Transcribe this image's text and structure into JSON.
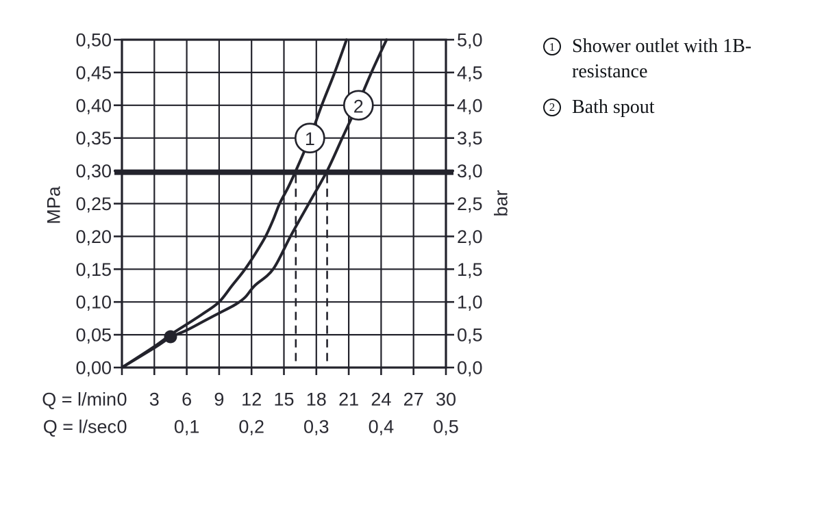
{
  "colors": {
    "ink": "#23232c",
    "text": "#2a2a32",
    "background": "#ffffff",
    "marker_fill": "#ffffff"
  },
  "chart_data": {
    "type": "line",
    "title": "",
    "x": {
      "min": 0,
      "max": 30,
      "grid_step": 3
    },
    "y": {
      "min": 0,
      "max": 0.5,
      "grid_step": 0.05
    },
    "y_left_axis": {
      "unit": "MPa",
      "labels": [
        "0,00",
        "0,05",
        "0,10",
        "0,15",
        "0,20",
        "0,25",
        "0,30",
        "0,35",
        "0,40",
        "0,45",
        "0,50"
      ]
    },
    "y_right_axis": {
      "unit": "bar",
      "labels": [
        "0,0",
        "0,5",
        "1,0",
        "1,5",
        "2,0",
        "2,5",
        "3,0",
        "3,5",
        "4,0",
        "4,5",
        "5,0"
      ]
    },
    "x_rows": [
      {
        "label": "Q = l/min",
        "step_lmin": 3,
        "ticks": [
          "0",
          "3",
          "6",
          "9",
          "12",
          "15",
          "18",
          "21",
          "24",
          "27",
          "30"
        ]
      },
      {
        "label": "Q = l/sec",
        "step_lmin": 6,
        "ticks": [
          "0",
          "0,1",
          "0,2",
          "0,3",
          "0,4",
          "0,5"
        ]
      }
    ],
    "reference_line_mpa": 0.3,
    "dashed_drop_lines_lmin": [
      16.1,
      19.0
    ],
    "operating_point": {
      "q_lmin": 4.5,
      "p_mpa": 0.047
    },
    "series": [
      {
        "name": "Shower outlet with 1B-resistance",
        "marker_label": "1",
        "marker_at": {
          "q_lmin": 17.4,
          "p_mpa": 0.35
        },
        "points_q_p": [
          [
            0,
            0
          ],
          [
            3,
            0.032
          ],
          [
            4.5,
            0.05
          ],
          [
            6,
            0.066
          ],
          [
            7.5,
            0.082
          ],
          [
            9,
            0.1
          ],
          [
            10.2,
            0.125
          ],
          [
            11.4,
            0.15
          ],
          [
            12.4,
            0.175
          ],
          [
            13.3,
            0.2
          ],
          [
            14.0,
            0.225
          ],
          [
            14.6,
            0.25
          ],
          [
            15.4,
            0.275
          ],
          [
            16.1,
            0.3
          ],
          [
            17.4,
            0.35
          ],
          [
            18.5,
            0.4
          ],
          [
            19.7,
            0.45
          ],
          [
            20.8,
            0.5
          ]
        ]
      },
      {
        "name": "Bath spout",
        "marker_label": "2",
        "marker_at": {
          "q_lmin": 21.9,
          "p_mpa": 0.4
        },
        "points_q_p": [
          [
            0,
            0
          ],
          [
            3,
            0.03
          ],
          [
            4.5,
            0.046
          ],
          [
            6,
            0.057
          ],
          [
            7.5,
            0.07
          ],
          [
            9,
            0.083
          ],
          [
            10.5,
            0.096
          ],
          [
            11.4,
            0.107
          ],
          [
            12.3,
            0.125
          ],
          [
            14.0,
            0.15
          ],
          [
            15.6,
            0.2
          ],
          [
            17.3,
            0.25
          ],
          [
            19.0,
            0.3
          ],
          [
            20.4,
            0.35
          ],
          [
            21.8,
            0.4
          ],
          [
            23.1,
            0.45
          ],
          [
            24.5,
            0.5
          ]
        ]
      }
    ],
    "legend_position": "top-right",
    "grid": "on"
  },
  "legend": {
    "items": [
      {
        "number": "1",
        "text": "Shower outlet with 1B-resistance"
      },
      {
        "number": "2",
        "text": "Bath spout"
      }
    ]
  }
}
